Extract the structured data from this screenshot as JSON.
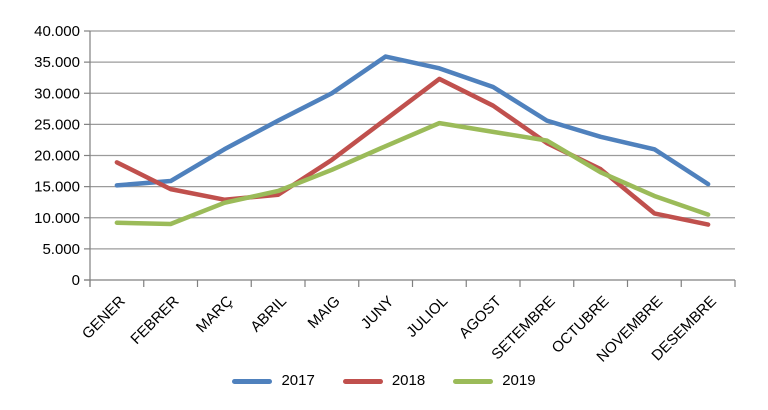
{
  "chart_data": {
    "type": "line",
    "title": "",
    "categories": [
      "GENER",
      "FEBRER",
      "MARÇ",
      "ABRIL",
      "MAIG",
      "JUNY",
      "JULIOL",
      "AGOST",
      "SETEMBRE",
      "OCTUBRE",
      "NOVEMBRE",
      "DESEMBRE"
    ],
    "series": [
      {
        "name": "2017",
        "color": "#4F81BD",
        "values": [
          15200,
          15900,
          21000,
          25600,
          30000,
          35900,
          34000,
          31000,
          25600,
          23000,
          21000,
          15400
        ]
      },
      {
        "name": "2018",
        "color": "#C0504D",
        "values": [
          18900,
          14600,
          12900,
          13700,
          19300,
          25800,
          32300,
          28000,
          22000,
          17800,
          10700,
          8900
        ]
      },
      {
        "name": "2019",
        "color": "#9BBB59",
        "values": [
          9200,
          9000,
          12400,
          14300,
          17700,
          21500,
          25200,
          23800,
          22400,
          17300,
          13500,
          10500
        ]
      }
    ],
    "y_axis": {
      "min": 0,
      "max": 40000,
      "step": 5000,
      "tick_labels": [
        "0",
        "5.000",
        "10.000",
        "15.000",
        "20.000",
        "25.000",
        "30.000",
        "35.000",
        "40.000"
      ]
    },
    "x_axis": {
      "label_rotation_deg": -45
    },
    "grid": true,
    "legend_position": "bottom"
  },
  "colors": {
    "background": "#FFFFFF",
    "gridline": "#9B9B9B",
    "axis": "#808080",
    "text": "#000000"
  }
}
